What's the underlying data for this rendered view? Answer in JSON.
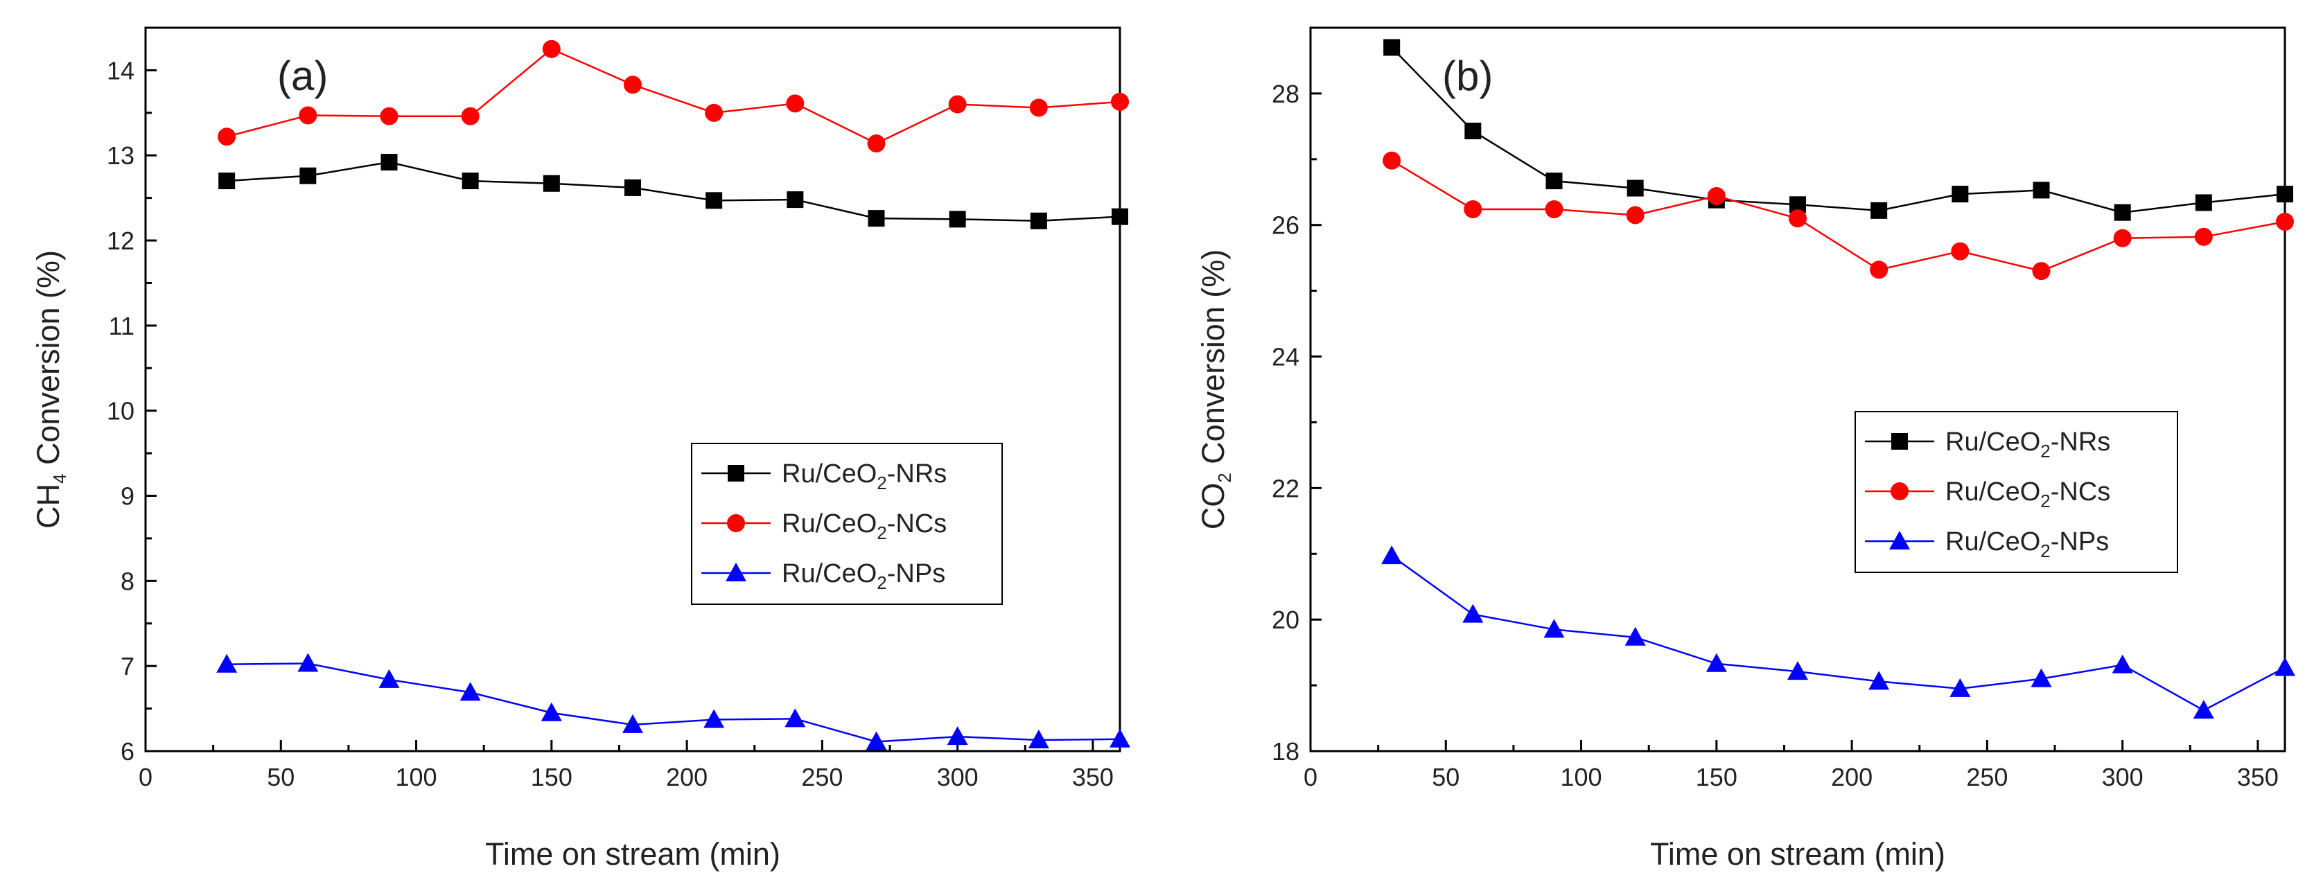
{
  "chart_data": [
    {
      "type": "line",
      "panel_label": "(a)",
      "title": "",
      "xlabel": "Time on stream (min)",
      "ylabel_parts": [
        "CH",
        "4",
        " Conversion (%)"
      ],
      "xlim": [
        0,
        360
      ],
      "ylim": [
        6,
        14.5
      ],
      "xticks": [
        0,
        50,
        100,
        150,
        200,
        250,
        300,
        350
      ],
      "yticks": [
        6,
        7,
        8,
        9,
        10,
        11,
        12,
        13,
        14
      ],
      "legend_position": "center-right",
      "x": [
        30,
        60,
        90,
        120,
        150,
        180,
        210,
        240,
        270,
        300,
        330,
        360
      ],
      "series": [
        {
          "name": "Ru/CeO2-NRs",
          "name_parts": [
            "Ru/CeO",
            "2",
            "-NRs"
          ],
          "color": "#000000",
          "marker": "square",
          "values": [
            12.7,
            12.76,
            12.92,
            12.7,
            12.67,
            12.62,
            12.47,
            12.48,
            12.26,
            12.25,
            12.23,
            12.28
          ]
        },
        {
          "name": "Ru/CeO2-NCs",
          "name_parts": [
            "Ru/CeO",
            "2",
            "-NCs"
          ],
          "color": "#ff0000",
          "marker": "circle",
          "values": [
            13.22,
            13.47,
            13.46,
            13.46,
            14.25,
            13.83,
            13.5,
            13.61,
            13.14,
            13.6,
            13.56,
            13.63
          ]
        },
        {
          "name": "Ru/CeO2-NPs",
          "name_parts": [
            "Ru/CeO",
            "2",
            "-NPs"
          ],
          "color": "#0000ff",
          "marker": "triangle",
          "values": [
            7.02,
            7.03,
            6.84,
            6.69,
            6.45,
            6.31,
            6.37,
            6.38,
            6.11,
            6.17,
            6.13,
            6.14
          ]
        }
      ]
    },
    {
      "type": "line",
      "panel_label": "(b)",
      "title": "",
      "xlabel": "Time on stream (min)",
      "ylabel_parts": [
        "CO",
        "2",
        " Conversion (%)"
      ],
      "xlim": [
        0,
        360
      ],
      "ylim": [
        18,
        29
      ],
      "xticks": [
        0,
        50,
        100,
        150,
        200,
        250,
        300,
        350
      ],
      "yticks": [
        18,
        20,
        22,
        24,
        26,
        28
      ],
      "legend_position": "center-right",
      "x": [
        30,
        60,
        90,
        120,
        150,
        180,
        210,
        240,
        270,
        300,
        330,
        360
      ],
      "series": [
        {
          "name": "Ru/CeO2-NRs",
          "name_parts": [
            "Ru/CeO",
            "2",
            "-NRs"
          ],
          "color": "#000000",
          "marker": "square",
          "values": [
            28.7,
            27.43,
            26.67,
            26.56,
            26.38,
            26.31,
            26.22,
            26.47,
            26.53,
            26.19,
            26.34,
            26.47
          ]
        },
        {
          "name": "Ru/CeO2-NCs",
          "name_parts": [
            "Ru/CeO",
            "2",
            "-NCs"
          ],
          "color": "#ff0000",
          "marker": "circle",
          "values": [
            26.98,
            26.24,
            26.24,
            26.15,
            26.44,
            26.1,
            25.32,
            25.6,
            25.3,
            25.8,
            25.82,
            26.05
          ]
        },
        {
          "name": "Ru/CeO2-NPs",
          "name_parts": [
            "Ru/CeO",
            "2",
            "-NPs"
          ],
          "color": "#0000ff",
          "marker": "triangle",
          "values": [
            20.97,
            20.08,
            19.85,
            19.73,
            19.33,
            19.21,
            19.06,
            18.95,
            19.1,
            19.31,
            18.62,
            19.27
          ]
        }
      ]
    }
  ]
}
